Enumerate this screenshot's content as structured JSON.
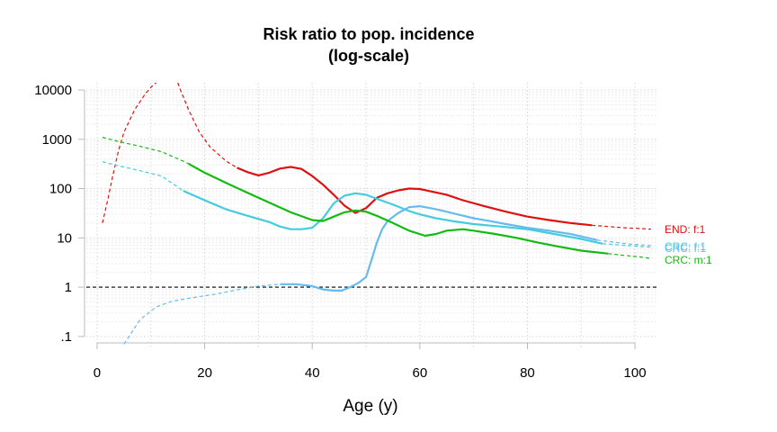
{
  "chart_data": {
    "type": "line",
    "title": "Risk ratio to pop. incidence",
    "subtitle": "(log-scale)",
    "xlabel": "Age (y)",
    "ylabel": "",
    "xlim": [
      -2,
      104
    ],
    "ylim": [
      0.06,
      14000
    ],
    "y_scale": "log",
    "x_ticks": [
      "0",
      "20",
      "40",
      "60",
      "80",
      "100"
    ],
    "x_tick_values": [
      0,
      20,
      40,
      60,
      80,
      100
    ],
    "y_ticks": [
      ".1",
      "1",
      "10",
      "100",
      "1000",
      "10000"
    ],
    "y_tick_values": [
      0.1,
      1,
      10,
      100,
      1000,
      10000
    ],
    "grid": true,
    "reference_line": {
      "y": 1,
      "style": "dashed",
      "color": "#000000"
    },
    "series": [
      {
        "name": "END: f:1",
        "color": "#dd1111",
        "dashed": [
          [
            [
              1,
              20
            ],
            [
              2,
              60
            ],
            [
              3,
              200
            ],
            [
              4,
              600
            ],
            [
              5,
              1400
            ],
            [
              7,
              4000
            ],
            [
              9,
              8500
            ],
            [
              10.5,
              13000
            ],
            [
              11,
              14000
            ]
          ],
          [
            [
              15,
              14000
            ],
            [
              15.5,
              10000
            ],
            [
              17,
              4000
            ],
            [
              19,
              1400
            ],
            [
              21,
              700
            ],
            [
              24,
              360
            ],
            [
              26,
              265
            ]
          ],
          [
            [
              92,
              18
            ],
            [
              95,
              17
            ],
            [
              98,
              16
            ],
            [
              101,
              15.5
            ],
            [
              103,
              15
            ]
          ]
        ],
        "solid": [
          [
            26,
            265
          ],
          [
            28,
            215
          ],
          [
            30,
            185
          ],
          [
            32,
            210
          ],
          [
            34,
            255
          ],
          [
            36,
            275
          ],
          [
            38,
            250
          ],
          [
            40,
            180
          ],
          [
            42,
            120
          ],
          [
            44,
            75
          ],
          [
            46,
            45
          ],
          [
            48,
            32
          ],
          [
            50,
            40
          ],
          [
            52,
            65
          ],
          [
            54,
            80
          ],
          [
            56,
            92
          ],
          [
            58,
            100
          ],
          [
            60,
            98
          ],
          [
            62,
            88
          ],
          [
            65,
            75
          ],
          [
            68,
            58
          ],
          [
            72,
            44
          ],
          [
            76,
            34
          ],
          [
            80,
            27
          ],
          [
            84,
            23
          ],
          [
            88,
            20
          ],
          [
            92,
            18
          ]
        ]
      },
      {
        "name": "CRC: f:1",
        "color": "#44ccdd",
        "dashed": [
          [
            [
              1,
              350
            ],
            [
              4,
              290
            ],
            [
              8,
              230
            ],
            [
              12,
              180
            ],
            [
              16,
              90
            ]
          ],
          [
            [
              94,
              7.6
            ],
            [
              97,
              7.2
            ],
            [
              100,
              6.8
            ],
            [
              103,
              6.5
            ]
          ]
        ],
        "solid": [
          [
            16,
            90
          ],
          [
            20,
            58
          ],
          [
            24,
            38
          ],
          [
            28,
            28
          ],
          [
            32,
            21
          ],
          [
            34,
            17
          ],
          [
            36,
            15
          ],
          [
            38,
            15
          ],
          [
            40,
            16
          ],
          [
            42,
            25
          ],
          [
            44,
            50
          ],
          [
            46,
            72
          ],
          [
            48,
            80
          ],
          [
            50,
            75
          ],
          [
            52,
            62
          ],
          [
            54,
            52
          ],
          [
            56,
            43
          ],
          [
            58,
            35
          ],
          [
            60,
            30
          ],
          [
            63,
            25
          ],
          [
            66,
            22
          ],
          [
            70,
            19
          ],
          [
            75,
            17
          ],
          [
            80,
            15
          ],
          [
            85,
            12
          ],
          [
            90,
            9.5
          ],
          [
            94,
            7.6
          ]
        ]
      },
      {
        "name": "CRC: f:1",
        "color": "#66bbee",
        "dashed": [
          [
            [
              5,
              0.07
            ],
            [
              8,
              0.22
            ],
            [
              11,
              0.4
            ],
            [
              14,
              0.52
            ],
            [
              18,
              0.62
            ],
            [
              22,
              0.72
            ],
            [
              26,
              0.88
            ],
            [
              30,
              1.05
            ],
            [
              34,
              1.15
            ]
          ],
          [
            [
              93,
              9
            ],
            [
              96,
              8.2
            ],
            [
              99,
              7.5
            ],
            [
              103,
              7
            ]
          ]
        ],
        "solid": [
          [
            34,
            1.15
          ],
          [
            37,
            1.15
          ],
          [
            40,
            1.05
          ],
          [
            42,
            0.9
          ],
          [
            44,
            0.85
          ],
          [
            45.5,
            0.85
          ],
          [
            47,
            1.0
          ],
          [
            48.5,
            1.2
          ],
          [
            50,
            1.6
          ],
          [
            51,
            3.5
          ],
          [
            52,
            8
          ],
          [
            53,
            15
          ],
          [
            54,
            22
          ],
          [
            56,
            32
          ],
          [
            58,
            42
          ],
          [
            60,
            44
          ],
          [
            62,
            40
          ],
          [
            64,
            36
          ],
          [
            67,
            30
          ],
          [
            70,
            25
          ],
          [
            73,
            22
          ],
          [
            76,
            19
          ],
          [
            80,
            16
          ],
          [
            84,
            14
          ],
          [
            88,
            12
          ],
          [
            93,
            9
          ]
        ]
      },
      {
        "name": "CRC: m:1",
        "color": "#11bb11",
        "dashed": [
          [
            [
              1,
              1100
            ],
            [
              4,
              900
            ],
            [
              8,
              720
            ],
            [
              12,
              560
            ],
            [
              16,
              360
            ],
            [
              17,
              320
            ]
          ],
          [
            [
              95,
              4.8
            ],
            [
              98,
              4.4
            ],
            [
              101,
              4.1
            ],
            [
              103,
              3.8
            ]
          ]
        ],
        "solid": [
          [
            17,
            320
          ],
          [
            20,
            210
          ],
          [
            24,
            130
          ],
          [
            28,
            82
          ],
          [
            32,
            52
          ],
          [
            36,
            33
          ],
          [
            40,
            23
          ],
          [
            42,
            22
          ],
          [
            44,
            27
          ],
          [
            46,
            33
          ],
          [
            48,
            36
          ],
          [
            50,
            34
          ],
          [
            52,
            28
          ],
          [
            55,
            20
          ],
          [
            58,
            14
          ],
          [
            61,
            11
          ],
          [
            63,
            12
          ],
          [
            65,
            14
          ],
          [
            68,
            15
          ],
          [
            70,
            14
          ],
          [
            74,
            12
          ],
          [
            78,
            10
          ],
          [
            82,
            8
          ],
          [
            86,
            6.6
          ],
          [
            90,
            5.5
          ],
          [
            95,
            4.8
          ]
        ]
      }
    ],
    "end_labels": [
      "END: f:1",
      "CRC: f:1",
      "CRC: f:1",
      "CRC: m:1"
    ]
  }
}
